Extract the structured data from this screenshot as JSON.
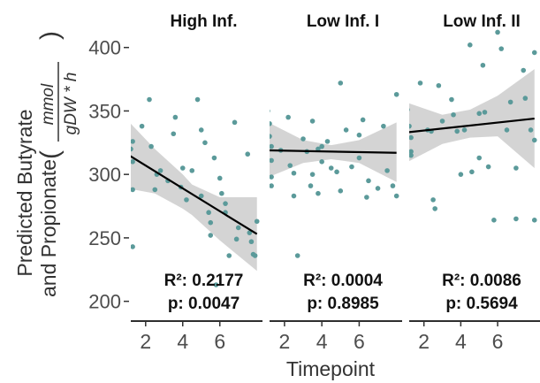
{
  "chart_data": {
    "type": "scatter",
    "ylabel": "Predicted Butyrate\nand Propionate (mmol/gDW*h)",
    "ylabel_line1": "Predicted Butyrate",
    "ylabel_line2": "and Propionate",
    "ylabel_unit_numerator": "mmol",
    "ylabel_unit_denominator": "gDW * h",
    "xlabel": "Timepoint",
    "ylim": [
      190,
      420
    ],
    "yticks": [
      200,
      250,
      300,
      350,
      400
    ],
    "xlim": [
      1.2,
      8.3
    ],
    "xticks": [
      2,
      4,
      6
    ],
    "grid": false,
    "point_color": "#5b9a9a",
    "line_color": "#000000",
    "band_color": "#cccccc",
    "panels": [
      {
        "title": "High Inf.",
        "r2_label": "R²: 0.2177",
        "p_label": "p: 0.0047",
        "fit": {
          "x": [
            1,
            8
          ],
          "y": [
            316,
            253
          ]
        },
        "band_upper": [
          [
            1,
            343
          ],
          [
            2.5,
            320
          ],
          [
            4,
            300
          ],
          [
            4.5,
            292
          ],
          [
            6,
            282
          ],
          [
            8,
            282
          ]
        ],
        "band_lower": [
          [
            1,
            289
          ],
          [
            2.5,
            285
          ],
          [
            4,
            273
          ],
          [
            4.5,
            268
          ],
          [
            6,
            248
          ],
          [
            8,
            224
          ]
        ],
        "points": [
          [
            1.2,
            320
          ],
          [
            1.3,
            326
          ],
          [
            1.3,
            310
          ],
          [
            1.3,
            288
          ],
          [
            1.3,
            243
          ],
          [
            1.8,
            338
          ],
          [
            2.2,
            359
          ],
          [
            2.3,
            322
          ],
          [
            2.5,
            288
          ],
          [
            2.6,
            300
          ],
          [
            2.8,
            303
          ],
          [
            3.2,
            295
          ],
          [
            3.5,
            332
          ],
          [
            3.6,
            345
          ],
          [
            3.9,
            290
          ],
          [
            4.0,
            305
          ],
          [
            4.2,
            280
          ],
          [
            4.5,
            303
          ],
          [
            4.8,
            359
          ],
          [
            5.0,
            283
          ],
          [
            5.0,
            335
          ],
          [
            5.2,
            325
          ],
          [
            5.4,
            270
          ],
          [
            5.5,
            252
          ],
          [
            5.5,
            262
          ],
          [
            5.7,
            313
          ],
          [
            5.8,
            213
          ],
          [
            6.0,
            297
          ],
          [
            6.1,
            285
          ],
          [
            6.3,
            277
          ],
          [
            6.3,
            270
          ],
          [
            6.5,
            236
          ],
          [
            6.8,
            341
          ],
          [
            6.9,
            249
          ],
          [
            7.0,
            258
          ],
          [
            7.5,
            316
          ],
          [
            7.6,
            254
          ],
          [
            7.7,
            247
          ],
          [
            7.8,
            237
          ],
          [
            7.9,
            236
          ],
          [
            8.0,
            263
          ]
        ]
      },
      {
        "title": "Low Inf. I",
        "r2_label": "R²: 0.0004",
        "p_label": "p: 0.8985",
        "fit": {
          "x": [
            1,
            8
          ],
          "y": [
            319,
            317
          ]
        },
        "band_upper": [
          [
            1,
            342
          ],
          [
            3,
            327
          ],
          [
            4.5,
            323
          ],
          [
            6,
            327
          ],
          [
            8,
            341
          ]
        ],
        "band_lower": [
          [
            1,
            297
          ],
          [
            3,
            309
          ],
          [
            4.5,
            312
          ],
          [
            6,
            309
          ],
          [
            8,
            294
          ]
        ],
        "points": [
          [
            1.0,
            376
          ],
          [
            1.0,
            355
          ],
          [
            1.1,
            350
          ],
          [
            1.2,
            340
          ],
          [
            1.2,
            330
          ],
          [
            1.3,
            322
          ],
          [
            1.3,
            311
          ],
          [
            1.3,
            298
          ],
          [
            1.3,
            291
          ],
          [
            1.8,
            319
          ],
          [
            2.2,
            345
          ],
          [
            2.3,
            307
          ],
          [
            2.5,
            301
          ],
          [
            2.5,
            283
          ],
          [
            2.7,
            236
          ],
          [
            3.0,
            328
          ],
          [
            3.2,
            318
          ],
          [
            3.4,
            291
          ],
          [
            3.5,
            300
          ],
          [
            3.5,
            342
          ],
          [
            3.8,
            285
          ],
          [
            3.8,
            320
          ],
          [
            4.0,
            322
          ],
          [
            4.0,
            310
          ],
          [
            4.3,
            326
          ],
          [
            4.5,
            305
          ],
          [
            4.8,
            302
          ],
          [
            5.0,
            372
          ],
          [
            5.0,
            287
          ],
          [
            5.3,
            335
          ],
          [
            5.6,
            306
          ],
          [
            6.0,
            331
          ],
          [
            6.0,
            313
          ],
          [
            6.2,
            343
          ],
          [
            6.4,
            282
          ],
          [
            6.5,
            295
          ],
          [
            7.0,
            289
          ],
          [
            7.3,
            338
          ],
          [
            7.5,
            303
          ],
          [
            7.8,
            291
          ],
          [
            8.0,
            283
          ],
          [
            8.0,
            363
          ]
        ]
      },
      {
        "title": "Low Inf. II",
        "r2_label": "R²: 0.0086",
        "p_label": "p: 0.5694",
        "fit": {
          "x": [
            1,
            8
          ],
          "y": [
            333,
            344
          ]
        },
        "band_upper": [
          [
            1,
            357
          ],
          [
            3,
            347
          ],
          [
            4.5,
            351
          ],
          [
            6,
            362
          ],
          [
            8,
            383
          ]
        ],
        "band_lower": [
          [
            1,
            309
          ],
          [
            3,
            324
          ],
          [
            4.5,
            329
          ],
          [
            6,
            330
          ],
          [
            8,
            305
          ]
        ],
        "points": [
          [
            1.0,
            382
          ],
          [
            1.0,
            375
          ],
          [
            1.1,
            351
          ],
          [
            1.2,
            338
          ],
          [
            1.3,
            329
          ],
          [
            1.3,
            318
          ],
          [
            1.3,
            315
          ],
          [
            1.8,
            372
          ],
          [
            2.2,
            335
          ],
          [
            2.4,
            334
          ],
          [
            2.5,
            280
          ],
          [
            2.6,
            273
          ],
          [
            2.8,
            370
          ],
          [
            3.0,
            342
          ],
          [
            3.5,
            359
          ],
          [
            3.6,
            347
          ],
          [
            3.8,
            334
          ],
          [
            4.0,
            300
          ],
          [
            4.2,
            335
          ],
          [
            4.5,
            402
          ],
          [
            4.6,
            302
          ],
          [
            5.0,
            313
          ],
          [
            5.0,
            348
          ],
          [
            5.2,
            386
          ],
          [
            5.3,
            349
          ],
          [
            5.5,
            306
          ],
          [
            5.8,
            264
          ],
          [
            6.0,
            412
          ],
          [
            6.2,
            399
          ],
          [
            6.5,
            335
          ],
          [
            6.7,
            357
          ],
          [
            7.0,
            265
          ],
          [
            7.0,
            305
          ],
          [
            7.4,
            382
          ],
          [
            7.5,
            360
          ],
          [
            7.8,
            335
          ],
          [
            8.0,
            264
          ],
          [
            8.0,
            327
          ],
          [
            8.0,
            396
          ]
        ]
      }
    ]
  }
}
